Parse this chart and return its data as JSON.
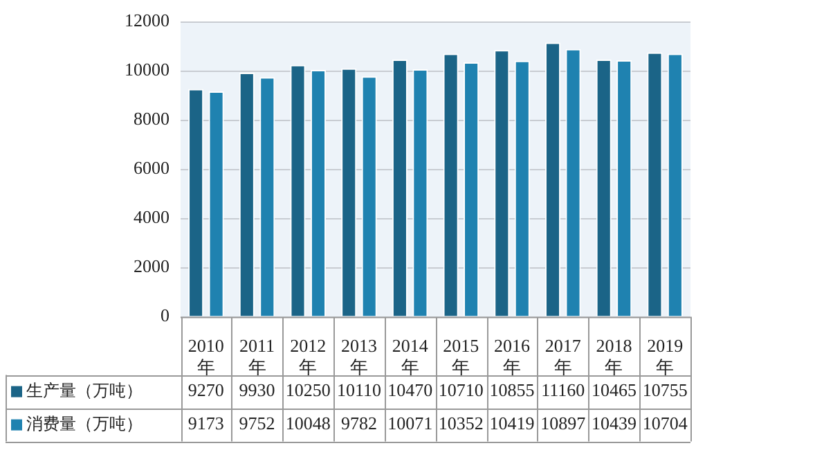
{
  "chart_data": {
    "type": "bar",
    "categories": [
      "2010年",
      "2011年",
      "2012年",
      "2013年",
      "2014年",
      "2015年",
      "2016年",
      "2017年",
      "2018年",
      "2019年"
    ],
    "series": [
      {
        "name": "生产量（万吨）",
        "color": "#1b6487",
        "values": [
          9270,
          9930,
          10250,
          10110,
          10470,
          10710,
          10855,
          11160,
          10465,
          10755
        ]
      },
      {
        "name": "消费量（万吨）",
        "color": "#1f82b0",
        "values": [
          9173,
          9752,
          10048,
          9782,
          10071,
          10352,
          10419,
          10897,
          10439,
          10704
        ]
      }
    ],
    "ylim": [
      0,
      12000
    ],
    "yticks": [
      0,
      2000,
      4000,
      6000,
      8000,
      10000,
      12000
    ],
    "grid": "y",
    "data_labels": true,
    "legend": "bottom left"
  }
}
